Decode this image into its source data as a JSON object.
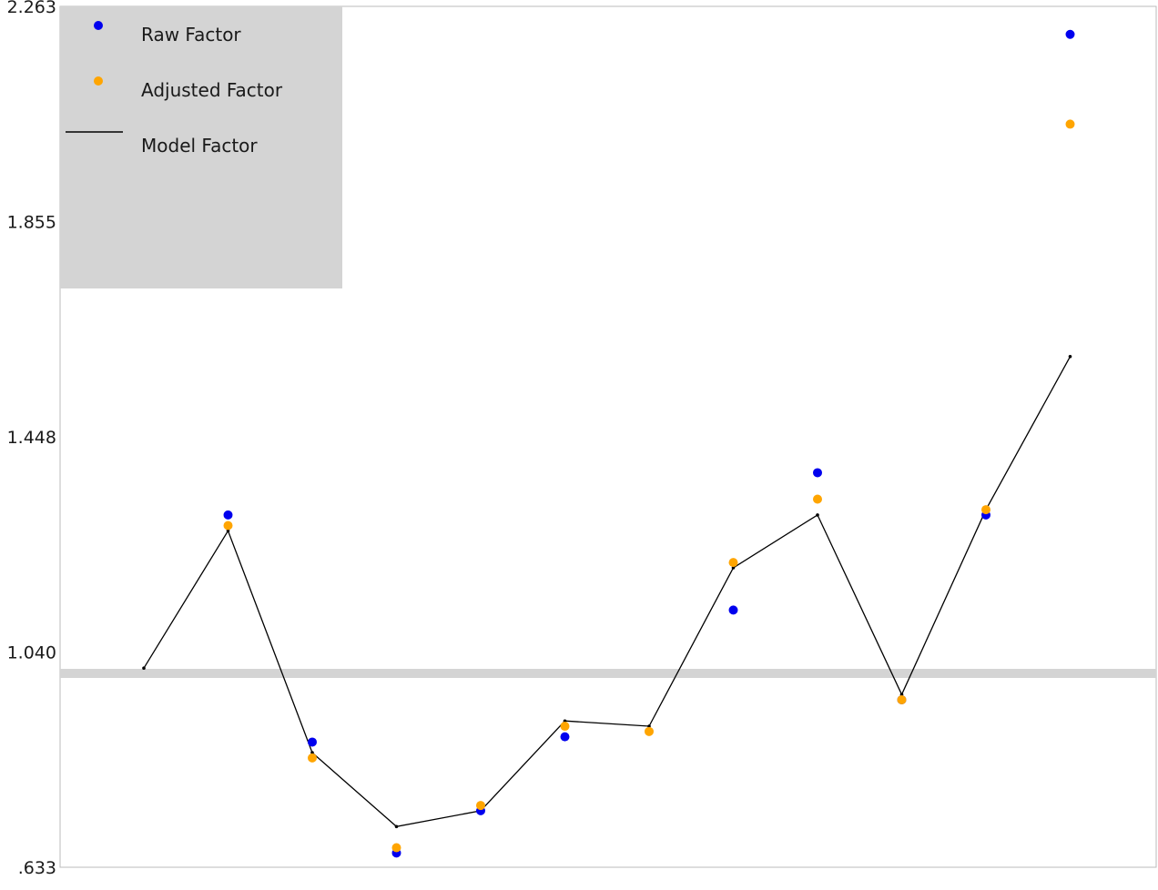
{
  "chart_data": {
    "type": "scatter",
    "y_ticks": [
      "2.263",
      "1.855",
      "1.448",
      "1.040",
      ".633"
    ],
    "ylim": [
      0.633,
      2.263
    ],
    "grid": false,
    "reference_line": 1.0,
    "legend": {
      "placement": "top-left",
      "entries": [
        {
          "label": "Raw Factor",
          "marker": "dot",
          "color": "#0000ee"
        },
        {
          "label": "Adjusted Factor",
          "marker": "dot",
          "color": "#ffa500"
        },
        {
          "label": "Model Factor",
          "marker": "line",
          "color": "#000000"
        }
      ]
    },
    "x": [
      1,
      2,
      3,
      4,
      5,
      6,
      7,
      8,
      9,
      10,
      11,
      12
    ],
    "series": [
      {
        "name": "Raw Factor",
        "color": "#0000ee",
        "kind": "points",
        "values": [
          null,
          1.3,
          0.87,
          0.66,
          0.74,
          0.88,
          null,
          1.12,
          1.38,
          0.95,
          1.3,
          2.21
        ]
      },
      {
        "name": "Adjusted Factor",
        "color": "#ffa500",
        "kind": "points",
        "values": [
          null,
          1.28,
          0.84,
          0.67,
          0.75,
          0.9,
          0.89,
          1.21,
          1.33,
          0.95,
          1.31,
          2.04
        ]
      },
      {
        "name": "Model Factor",
        "color": "#000000",
        "kind": "line",
        "values": [
          1.01,
          1.27,
          0.85,
          0.71,
          0.74,
          0.91,
          0.9,
          1.2,
          1.3,
          0.96,
          1.31,
          1.6
        ]
      }
    ]
  },
  "colors": {
    "legend_background": "#d4d4d4",
    "reference_band": "#d4d4d4",
    "plot_border": "#bbbbbb"
  }
}
